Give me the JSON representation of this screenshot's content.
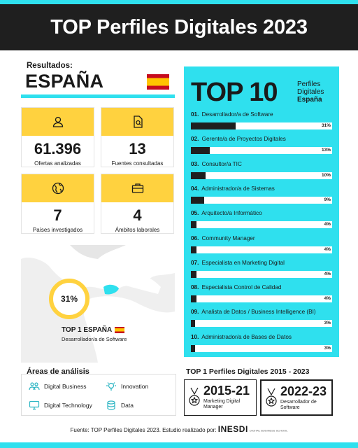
{
  "header": {
    "title": "TOP Perfiles Digitales 2023"
  },
  "results": {
    "label": "Resultados:",
    "country": "ESPAÑA"
  },
  "stats": [
    {
      "icon": "user-icon",
      "value": "61.396",
      "caption": "Ofertas analizadas"
    },
    {
      "icon": "document-search-icon",
      "value": "13",
      "caption": "Fuentes consultadas"
    },
    {
      "icon": "globe-icon",
      "value": "7",
      "caption": "Países investigados"
    },
    {
      "icon": "briefcase-icon",
      "value": "4",
      "caption": "Ámbitos laborales"
    }
  ],
  "map": {
    "percent": "31%",
    "top1_title": "TOP 1 ESPAÑA",
    "top1_subtitle": "Desarrollador/a de Software",
    "percent_fraction": 0.31
  },
  "areas": {
    "title": "Áreas de análisis",
    "items": [
      "Digital Business",
      "Innovation",
      "Digital Technology",
      "Data"
    ]
  },
  "top10": {
    "big": "TOP 10",
    "sub1": "Perfiles",
    "sub2": "Digitales",
    "sub3": "España",
    "items": [
      {
        "n": "01.",
        "label": "Desarrollador/a de Software",
        "pct": "31%",
        "value": 31
      },
      {
        "n": "02.",
        "label": "Gerente/a de Proyectos Digitales",
        "pct": "13%",
        "value": 13
      },
      {
        "n": "03.",
        "label": "Consultor/a TIC",
        "pct": "10%",
        "value": 10
      },
      {
        "n": "04.",
        "label": "Administrador/a de Sistemas",
        "pct": "9%",
        "value": 9
      },
      {
        "n": "05.",
        "label": "Arquitecto/a Informático",
        "pct": "4%",
        "value": 4
      },
      {
        "n": "06.",
        "label": "Community Manager",
        "pct": "4%",
        "value": 4
      },
      {
        "n": "07.",
        "label": "Especialista en Marketing Digital",
        "pct": "4%",
        "value": 4
      },
      {
        "n": "08.",
        "label": "Especialista Control de Calidad",
        "pct": "4%",
        "value": 4
      },
      {
        "n": "09.",
        "label": "Analista de Datos / Business Intelligence (BI)",
        "pct": "3%",
        "value": 3
      },
      {
        "n": "10.",
        "label": "Administrador/a de Bases de Datos",
        "pct": "3%",
        "value": 3
      }
    ]
  },
  "history": {
    "title": "TOP 1 Perfiles Digitales 2015 - 2023",
    "boxes": [
      {
        "years": "2015-21",
        "desc": "Marketing Digital Manager"
      },
      {
        "years": "2022-23",
        "desc": "Desarrollador de Software"
      }
    ]
  },
  "footer": {
    "text": "Fuente: TOP Perfiles Digitales 2023. Estudio realizado por:",
    "brand": "INESDI",
    "brand_tag": "DIGITAL BUSINESS SCHOOL"
  },
  "colors": {
    "accent": "#2fe0ee",
    "yellow": "#ffd23f",
    "dark": "#1f1f1f"
  }
}
